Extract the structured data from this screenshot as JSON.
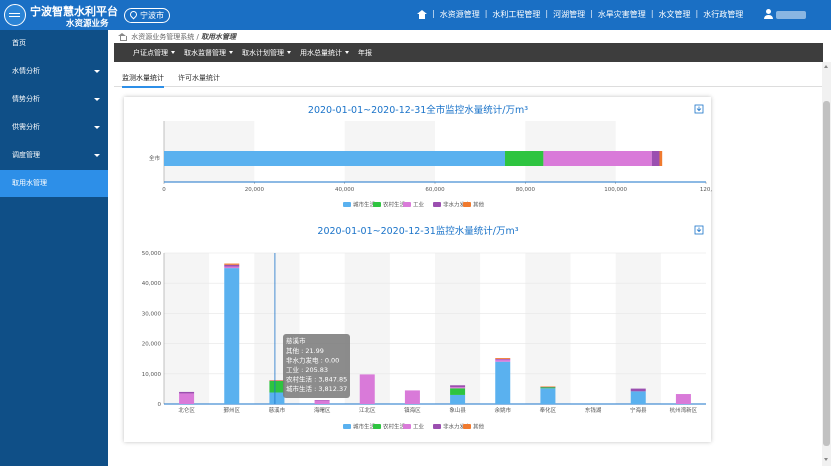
{
  "header": {
    "title": "宁波智慧水利平台",
    "subtitle": "水资源业务",
    "city": "宁波市",
    "nav": [
      "水资源管理",
      "水利工程管理",
      "河湖管理",
      "水旱灾害管理",
      "水文管理",
      "水行政管理"
    ]
  },
  "sidebar": {
    "items": [
      {
        "label": "首页",
        "caret": false,
        "active": false
      },
      {
        "label": "水情分析",
        "caret": true,
        "active": false
      },
      {
        "label": "情势分析",
        "caret": true,
        "active": false
      },
      {
        "label": "供需分析",
        "caret": true,
        "active": false
      },
      {
        "label": "调度管理",
        "caret": true,
        "active": false
      },
      {
        "label": "取用水管理",
        "caret": false,
        "active": true
      }
    ]
  },
  "breadcrumb": {
    "root": "水资源业务管理系统",
    "sep": "/",
    "current": "取用水管理"
  },
  "subnav": {
    "items": [
      {
        "label": "户证点管理",
        "caret": true
      },
      {
        "label": "取水监督管理",
        "caret": true
      },
      {
        "label": "取水计划管理",
        "caret": true
      },
      {
        "label": "用水总量统计",
        "caret": true
      },
      {
        "label": "年报",
        "caret": false
      }
    ]
  },
  "tabs": [
    {
      "label": "监测水量统计",
      "active": true
    },
    {
      "label": "许可水量统计",
      "active": false
    }
  ],
  "colors": {
    "城市生活": "#5ab1ef",
    "农村生活": "#2ec440",
    "工业": "#d97ad9",
    "非水力发电": "#9b4fb0",
    "其他": "#f07a2e"
  },
  "legend": [
    "城市生活",
    "农村生活",
    "工业",
    "非水力发电",
    "其他"
  ],
  "chart_data": [
    {
      "type": "bar",
      "orientation": "horizontal",
      "stacked": true,
      "title": "2020-01-01~2020-12-31全市监控水量统计/万m³",
      "categories": [
        "全市"
      ],
      "xlim": [
        0,
        120000
      ],
      "xticks": [
        "0",
        "20,000",
        "40,000",
        "60,000",
        "80,000",
        "100,000",
        "120,"
      ],
      "series": [
        {
          "name": "城市生活",
          "values": [
            75500
          ]
        },
        {
          "name": "农村生活",
          "values": [
            8500
          ]
        },
        {
          "name": "工业",
          "values": [
            24000
          ]
        },
        {
          "name": "非水力发电",
          "values": [
            1700
          ]
        },
        {
          "name": "其他",
          "values": [
            600
          ]
        }
      ]
    },
    {
      "type": "bar",
      "stacked": true,
      "title": "2020-01-01~2020-12-31监控水量统计/万m³",
      "categories": [
        "北仑区",
        "鄞州区",
        "慈溪市",
        "海曙区",
        "江北区",
        "镇海区",
        "象山县",
        "余姚市",
        "奉化区",
        "东钱湖",
        "宁海县",
        "杭州湾新区"
      ],
      "ylim": [
        0,
        50000
      ],
      "yticks": [
        "0",
        "10,000",
        "20,000",
        "30,000",
        "40,000",
        "50,000"
      ],
      "series": [
        {
          "name": "城市生活",
          "values": [
            0,
            45000,
            3812,
            0,
            0,
            0,
            3000,
            14000,
            5200,
            0,
            4200,
            0
          ]
        },
        {
          "name": "农村生活",
          "values": [
            0,
            0,
            3848,
            0,
            0,
            0,
            2200,
            0,
            400,
            0,
            0,
            0
          ]
        },
        {
          "name": "工业",
          "values": [
            3500,
            500,
            206,
            1200,
            9800,
            4500,
            400,
            700,
            0,
            0,
            0,
            3300
          ]
        },
        {
          "name": "非水力发电",
          "values": [
            500,
            600,
            0,
            100,
            0,
            0,
            600,
            200,
            100,
            0,
            900,
            0
          ]
        },
        {
          "name": "其他",
          "values": [
            0,
            400,
            22,
            0,
            0,
            0,
            0,
            300,
            100,
            0,
            0,
            0
          ]
        }
      ],
      "tooltip": {
        "category": "慈溪市",
        "lines": [
          "其他 : 21.99",
          "非水力发电 : 0.00",
          "工业 : 205.83",
          "农村生活 : 3,847.85",
          "城市生活 : 3,812.37"
        ]
      }
    }
  ]
}
